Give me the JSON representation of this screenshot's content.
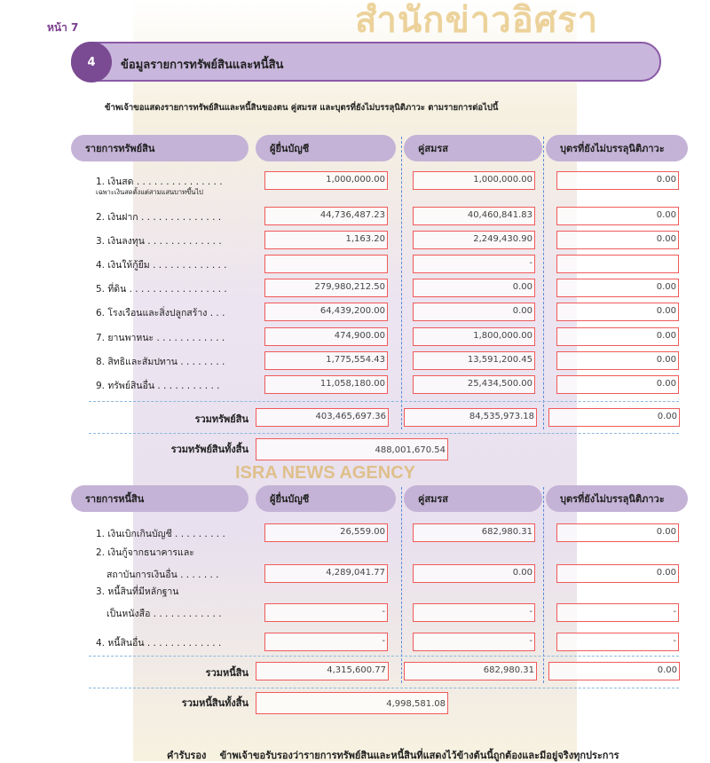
{
  "page_label": "หน้า 7",
  "watermark": {
    "text_th": "สำนักข่าวอิศรา",
    "text_en": "ISRA NEWS AGENCY"
  },
  "section": {
    "number": "4",
    "title": "ข้อมูลรายการทรัพย์สินและหนี้สิน",
    "intro": "ข้าพเจ้าขอแสดงรายการทรัพย์สินและหนี้สินของตน คู่สมรส และบุตรที่ยังไม่บรรลุนิติภาวะ ตามรายการต่อไปนี้"
  },
  "assets": {
    "headers": [
      "รายการทรัพย์สิน",
      "ผู้ยื่นบัญชี",
      "คู่สมรส",
      "บุตรที่ยังไม่บรรลุนิติภาวะ"
    ],
    "rows": [
      {
        "label": "1. เงินสด . . . . . . . . . . . . . . .",
        "note": "เฉพาะเงินสดตั้งแต่สามแสนบาทขึ้นไป",
        "values": [
          "1,000,000.00",
          "1,000,000.00",
          "0.00"
        ]
      },
      {
        "label": "2. เงินฝาก . . . . . . . . . . . . . .",
        "values": [
          "44,736,487.23",
          "40,460,841.83",
          "0.00"
        ]
      },
      {
        "label": "3. เงินลงทุน . . . . . . . . . . . . .",
        "values": [
          "1,163.20",
          "2,249,430.90",
          "0.00"
        ]
      },
      {
        "label": "4. เงินให้กู้ยืม . . . . . . . . . . . . .",
        "values": [
          "",
          "-",
          ""
        ]
      },
      {
        "label": "5. ที่ดิน . . . . . . . . . . . . . . . . .",
        "values": [
          "279,980,212.50",
          "0.00",
          "0.00"
        ]
      },
      {
        "label": "6. โรงเรือนและสิ่งปลูกสร้าง . . .",
        "values": [
          "64,439,200.00",
          "0.00",
          "0.00"
        ]
      },
      {
        "label": "7. ยานพาหนะ . . . . . . . . . . . .",
        "values": [
          "474,900.00",
          "1,800,000.00",
          "0.00"
        ]
      },
      {
        "label": "8. สิทธิและสัมปทาน . . . . . . . .",
        "values": [
          "1,775,554.43",
          "13,591,200.45",
          "0.00"
        ]
      },
      {
        "label": "9. ทรัพย์สินอื่น . . . . . . . . . . .",
        "values": [
          "11,058,180.00",
          "25,434,500.00",
          "0.00"
        ]
      }
    ],
    "subtotal_label": "รวมทรัพย์สิน",
    "subtotals": [
      "403,465,697.36",
      "84,535,973.18",
      "0.00"
    ],
    "grand_label": "รวมทรัพย์สินทั้งสิ้น",
    "grand_total": "488,001,670.54"
  },
  "liabilities": {
    "headers": [
      "รายการหนี้สิน",
      "ผู้ยื่นบัญชี",
      "คู่สมรส",
      "บุตรที่ยังไม่บรรลุนิติภาวะ"
    ],
    "rows": [
      {
        "label": "1. เงินเบิกเกินบัญชี . . . . . . . . .",
        "values": [
          "26,559.00",
          "682,980.31",
          "0.00"
        ]
      },
      {
        "label": "2. เงินกู้จากธนาคารและ",
        "label2": "สถาบันการเงินอื่น . . . . . . .",
        "values": [
          "4,289,041.77",
          "0.00",
          "0.00"
        ]
      },
      {
        "label": "3. หนี้สินที่มีหลักฐาน",
        "label2": "เป็นหนังสือ . . . . . . . . . . . .",
        "values": [
          "-",
          "-",
          "-"
        ]
      },
      {
        "label": "4. หนี้สินอื่น . . . . . . . . . . . . .",
        "values": [
          "-",
          "-",
          "-"
        ]
      }
    ],
    "subtotal_label": "รวมหนี้สิน",
    "subtotals": [
      "4,315,600.77",
      "682,980.31",
      "0.00"
    ],
    "grand_label": "รวมหนี้สินทั้งสิ้น",
    "grand_total": "4,998,581.08"
  },
  "certification": {
    "label": "คำรับรอง",
    "text": "ข้าพเจ้าขอรับรองว่ารายการทรัพย์สินและหนี้สินที่แสดงไว้ข้างต้นนี้ถูกต้องและมีอยู่จริงทุกประการ"
  }
}
